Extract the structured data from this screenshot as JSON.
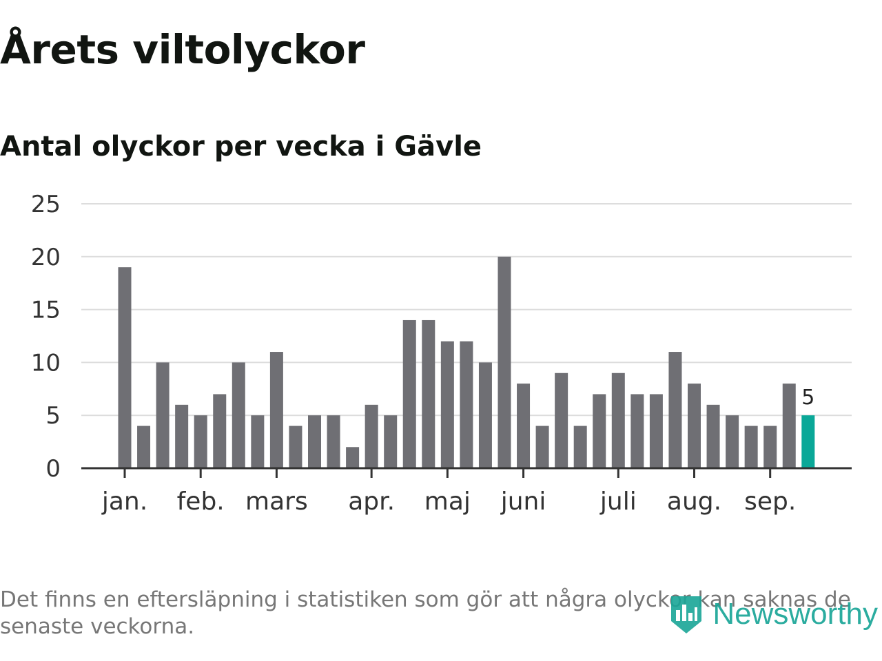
{
  "title": "Årets viltolyckor",
  "subtitle": "Antal olyckor per vecka i Gävle",
  "footnote": "Det finns en eftersläpning i statistiken som gör att några olyckor kan saknas de senaste veckorna.",
  "brand": {
    "name": "Newsworthy",
    "color": "#1aa597",
    "icon": "bar-chart-pin-icon"
  },
  "chart_data": {
    "type": "bar",
    "title": "Antal olyckor per vecka i Gävle",
    "xlabel": "",
    "ylabel": "",
    "ylim": [
      0,
      25
    ],
    "yticks": [
      0,
      5,
      10,
      15,
      20,
      25
    ],
    "grid": true,
    "month_labels": [
      {
        "label": "jan.",
        "bar_index": 0
      },
      {
        "label": "feb.",
        "bar_index": 4
      },
      {
        "label": "mars",
        "bar_index": 8
      },
      {
        "label": "apr.",
        "bar_index": 13
      },
      {
        "label": "maj",
        "bar_index": 17
      },
      {
        "label": "juni",
        "bar_index": 21
      },
      {
        "label": "juli",
        "bar_index": 26
      },
      {
        "label": "aug.",
        "bar_index": 30
      },
      {
        "label": "sep.",
        "bar_index": 34
      }
    ],
    "values": [
      19,
      4,
      10,
      6,
      5,
      7,
      10,
      5,
      11,
      4,
      5,
      5,
      2,
      6,
      5,
      14,
      14,
      12,
      12,
      10,
      20,
      8,
      4,
      9,
      4,
      7,
      9,
      7,
      7,
      11,
      8,
      6,
      5,
      4,
      4,
      8,
      5
    ],
    "bar_color": "#6f6f74",
    "highlight_color": "#0aa898",
    "highlight_last": true,
    "highlight_label": "5"
  }
}
